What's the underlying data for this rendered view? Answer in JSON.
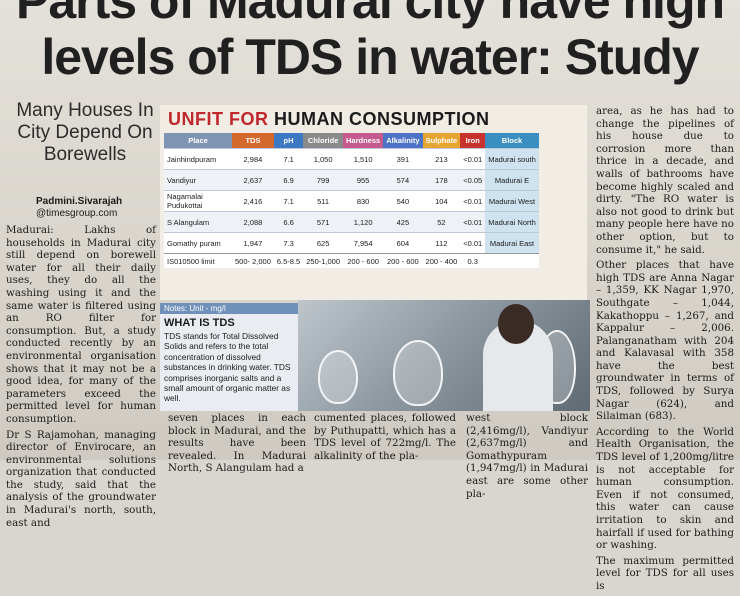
{
  "headline": {
    "line1": "Parts of Madurai city have high",
    "line2": "levels of TDS in water: Study"
  },
  "deck": "Many Houses In City Depend On Borewells",
  "byline": {
    "name": "Padmini.Sivarajah",
    "handle": "@timesgroup.com"
  },
  "col1": [
    "Madurai: Lakhs of households in Madurai city still depend on borewell water for all their daily uses, they do all the washing using it and the same water is filtered using an RO filter for consumption. But, a study conducted recently by an environmental organisation shows that it may not be a good idea, for many of the parameters exceed the permitted level for human consumption.",
    "Dr S Rajamohan, managing director of Envirocare, an environmental solutions organization that conducted the study, said that the analysis of the groundwater in Madurai's north, south, east and"
  ],
  "table": {
    "title_red": "UNFIT FOR",
    "title_rest": "HUMAN CONSUMPTION",
    "headers": [
      {
        "label": "Place",
        "color": "#7f93b3"
      },
      {
        "label": "TDS",
        "color": "#d5682c"
      },
      {
        "label": "pH",
        "color": "#3c78c4"
      },
      {
        "label": "Chloride",
        "color": "#8a8a8a"
      },
      {
        "label": "Hardness",
        "color": "#c65a8e"
      },
      {
        "label": "Alkalinity",
        "color": "#4d73c9"
      },
      {
        "label": "Sulphate",
        "color": "#e6a531"
      },
      {
        "label": "Iron",
        "color": "#c8342d"
      },
      {
        "label": "Block",
        "color": "#3a8fc2"
      }
    ],
    "rows": [
      [
        "Jainhindpuram",
        "2,984",
        "7.1",
        "1,050",
        "1,510",
        "391",
        "213",
        "<0.01",
        "Madurai south"
      ],
      [
        "Vandiyur",
        "2,637",
        "6.9",
        "799",
        "955",
        "574",
        "178",
        "<0.05",
        "Madurai E"
      ],
      [
        "Nagamalai Pudukottai",
        "2,416",
        "7.1",
        "511",
        "830",
        "540",
        "104",
        "<0.01",
        "Madurai West"
      ],
      [
        "S Alangulam",
        "2,088",
        "6.6",
        "571",
        "1,120",
        "425",
        "52",
        "<0.01",
        "Madurai North"
      ],
      [
        "Gomathy puram",
        "1,947",
        "7.3",
        "625",
        "7,954",
        "604",
        "112",
        "<0.01",
        "Madurai East"
      ]
    ],
    "limit_row": [
      "IS010500 limit",
      "500- 2,000",
      "6.5-8.5",
      "250-1,000",
      "200 - 600",
      "200 - 600",
      "200 - 400",
      "0.3",
      ""
    ]
  },
  "notes": {
    "label": "Notes: Unit - mg/l",
    "heading": "WHAT IS TDS",
    "body": "TDS stands for Total Dissolved Solids and refers to the total concentration of dissolved substances in drinking water. TDS comprises inorganic salts and a small amount of organic matter as well."
  },
  "col2": "seven places in each block in Madurai, and the results have been revealed. In Madurai North, S Alangulam had a",
  "col3": "cumented places, followed by Puthupatti, which has a TDS level of 722mg/l. The alkalinity of the pla-",
  "col4": "west block (2,416mg/l), Vandiyur (2,637mg/l) and Gomathypuram (1,947mg/l) in Madurai east are some other pla-",
  "col5": [
    "area, as he has had to change the pipelines of his house due to corrosion more than thrice in a decade, and walls of bathrooms have become highly scaled and dirty. \"The RO water is also not good to drink but many people here have no other option, but to consume it,\" he said.",
    "Other places that have high TDS are Anna Nagar – 1,359, KK Nagar 1,970, Southgate – 1,044, Kakathoppu – 1,267, and Kappalur – 2,006. Palanganatham with 204 and Kalavasal with 358 have the best groundwater in terms of TDS, followed by Surya Nagar (624), and Silaiman (683).",
    "According to the World Health Organisation, the TDS level of 1,200mg/litre is not acceptable for human consumption. Even if not consumed, this water can cause irritation to skin and hairfall if used for bathing or washing.",
    "The maximum permitted level for TDS for all uses is"
  ]
}
